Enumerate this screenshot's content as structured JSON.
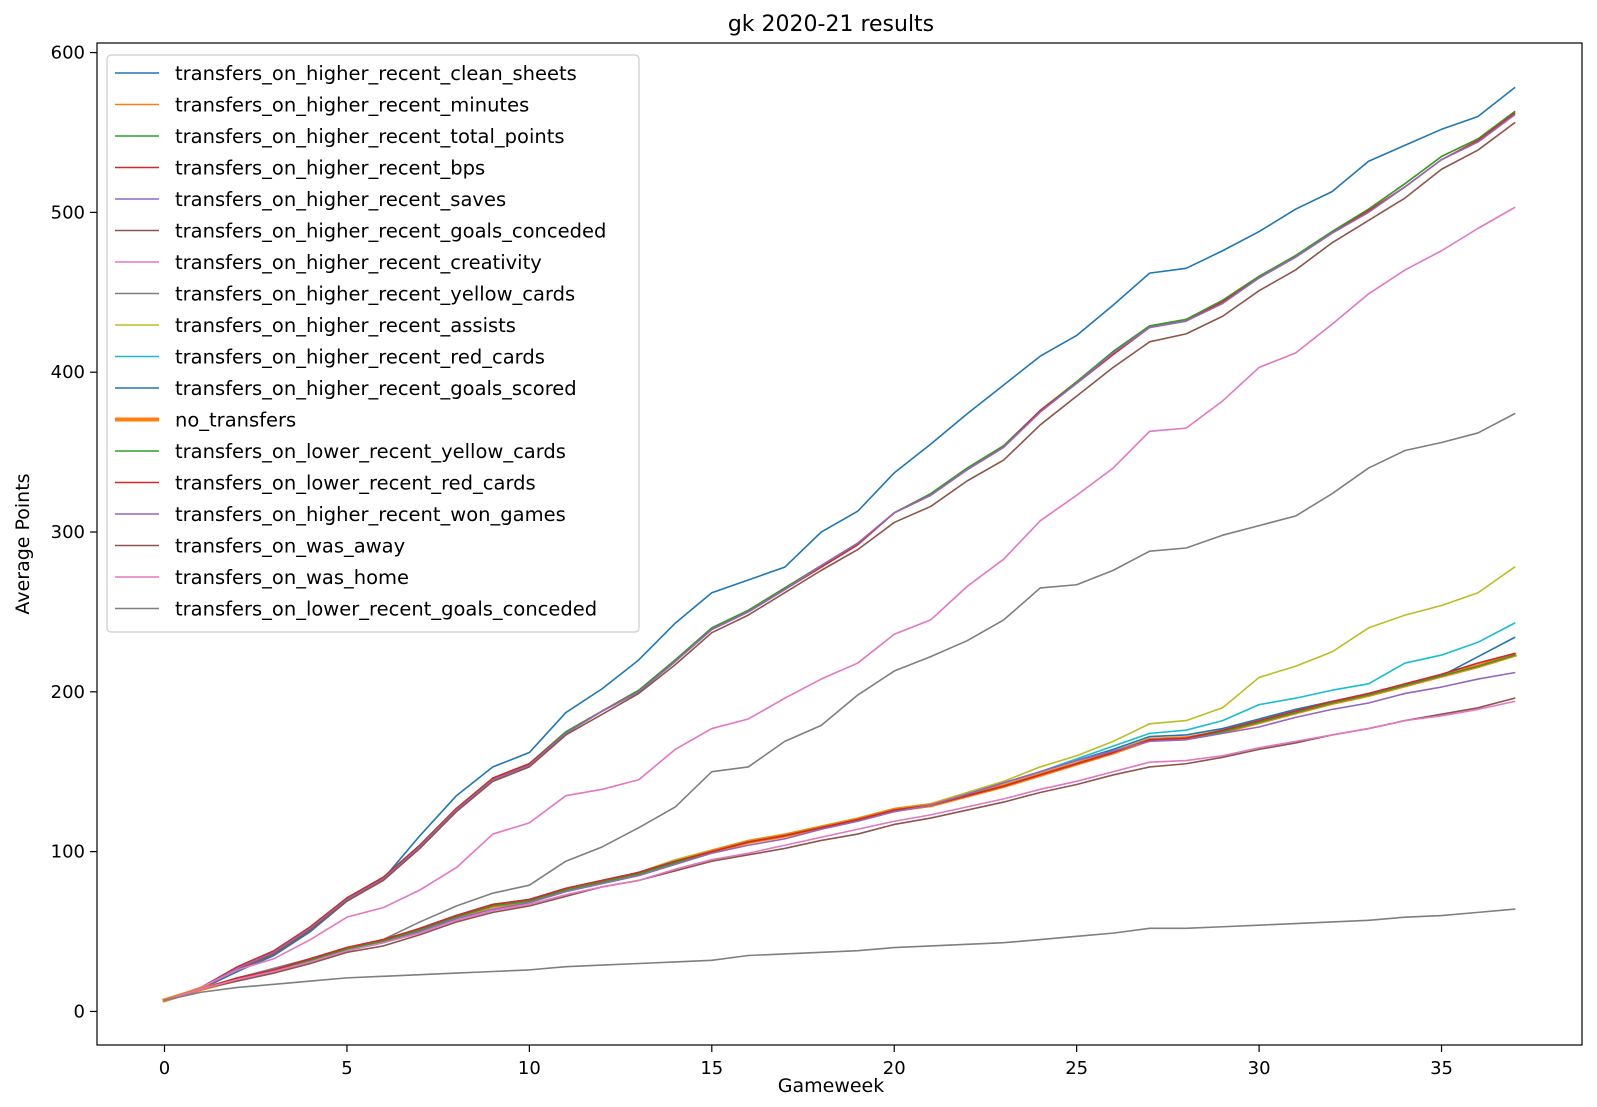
{
  "chart_data": {
    "type": "line",
    "title": "gk 2020-21 results",
    "xlabel": "Gameweek",
    "ylabel": "Average Points",
    "xlim": [
      -1.85,
      38.85
    ],
    "ylim": [
      -21,
      606
    ],
    "xticks": [
      0,
      5,
      10,
      15,
      20,
      25,
      30,
      35
    ],
    "yticks": [
      0,
      100,
      200,
      300,
      400,
      500,
      600
    ],
    "grid": false,
    "legend_position": "top-left",
    "x": [
      0,
      1,
      2,
      3,
      4,
      5,
      6,
      7,
      8,
      9,
      10,
      11,
      12,
      13,
      14,
      15,
      16,
      17,
      18,
      19,
      20,
      21,
      22,
      23,
      24,
      25,
      26,
      27,
      28,
      29,
      30,
      31,
      32,
      33,
      34,
      35,
      36,
      37
    ],
    "series": [
      {
        "name": "transfers_on_higher_recent_clean_sheets",
        "color": "#1f77b4",
        "width": 1.6,
        "values": [
          7,
          14,
          25,
          35,
          50,
          69,
          83,
          110,
          135,
          153,
          162,
          187,
          202,
          220,
          243,
          262,
          270,
          278,
          300,
          313,
          337,
          355,
          374,
          392,
          410,
          423,
          442,
          462,
          465,
          476,
          488,
          502,
          513,
          532,
          542,
          552,
          560,
          578
        ]
      },
      {
        "name": "transfers_on_higher_recent_minutes",
        "color": "#ff7f0e",
        "width": 1.6,
        "values": [
          7,
          15,
          27,
          37,
          53,
          71,
          84,
          104,
          127,
          146,
          155,
          175,
          188,
          201,
          220,
          240,
          251,
          265,
          279,
          293,
          312,
          324,
          340,
          354,
          376,
          394,
          413,
          429,
          433,
          445,
          460,
          473,
          488,
          502,
          518,
          535,
          546,
          563
        ]
      },
      {
        "name": "transfers_on_higher_recent_total_points",
        "color": "#2ca02c",
        "width": 1.6,
        "values": [
          7,
          15,
          27,
          37,
          53,
          71,
          84,
          104,
          127,
          146,
          155,
          175,
          188,
          201,
          220,
          240,
          251,
          265,
          279,
          293,
          312,
          324,
          340,
          354,
          376,
          394,
          413,
          429,
          433,
          445,
          460,
          473,
          488,
          502,
          518,
          535,
          546,
          563
        ]
      },
      {
        "name": "transfers_on_higher_recent_bps",
        "color": "#d62728",
        "width": 1.6,
        "values": [
          7,
          15,
          28,
          38,
          53,
          71,
          84,
          104,
          127,
          146,
          155,
          174,
          188,
          200,
          219,
          239,
          250,
          264,
          278,
          292,
          312,
          323,
          339,
          353,
          376,
          393,
          411,
          428,
          432,
          444,
          459,
          472,
          487,
          501,
          516,
          533,
          545,
          562
        ]
      },
      {
        "name": "transfers_on_higher_recent_saves",
        "color": "#9467bd",
        "width": 1.6,
        "values": [
          7,
          15,
          27,
          37,
          52,
          70,
          83,
          103,
          126,
          145,
          154,
          174,
          188,
          200,
          219,
          239,
          250,
          264,
          279,
          293,
          312,
          323,
          339,
          353,
          375,
          393,
          412,
          428,
          432,
          443,
          459,
          472,
          487,
          500,
          516,
          533,
          544,
          561
        ]
      },
      {
        "name": "transfers_on_higher_recent_goals_conceded",
        "color": "#8c564b",
        "width": 1.6,
        "values": [
          7,
          15,
          26,
          36,
          51,
          69,
          82,
          102,
          125,
          144,
          153,
          173,
          186,
          199,
          217,
          237,
          248,
          262,
          276,
          289,
          306,
          316,
          332,
          345,
          367,
          385,
          403,
          419,
          424,
          435,
          451,
          464,
          481,
          495,
          509,
          527,
          539,
          556
        ]
      },
      {
        "name": "transfers_on_higher_recent_creativity",
        "color": "#e377c2",
        "width": 1.6,
        "values": [
          7,
          15,
          26,
          33,
          45,
          59,
          65,
          76,
          90,
          111,
          118,
          135,
          139,
          145,
          164,
          177,
          183,
          196,
          208,
          218,
          236,
          245,
          266,
          283,
          307,
          323,
          340,
          363,
          365,
          382,
          403,
          412,
          430,
          449,
          464,
          476,
          490,
          503
        ]
      },
      {
        "name": "transfers_on_higher_recent_yellow_cards",
        "color": "#7f7f7f",
        "width": 1.6,
        "values": [
          7,
          14,
          21,
          27,
          33,
          40,
          45,
          56,
          66,
          74,
          79,
          94,
          103,
          115,
          128,
          150,
          153,
          169,
          179,
          198,
          213,
          222,
          232,
          245,
          265,
          267,
          276,
          288,
          290,
          298,
          304,
          310,
          324,
          340,
          351,
          356,
          362,
          374
        ]
      },
      {
        "name": "transfers_on_higher_recent_assists",
        "color": "#bcbd22",
        "width": 1.6,
        "values": [
          7,
          14,
          21,
          26,
          33,
          39,
          44,
          52,
          60,
          67,
          70,
          77,
          82,
          87,
          95,
          101,
          107,
          111,
          116,
          121,
          127,
          130,
          137,
          144,
          153,
          160,
          169,
          180,
          182,
          190,
          209,
          216,
          225,
          240,
          248,
          254,
          262,
          278
        ]
      },
      {
        "name": "transfers_on_higher_recent_red_cards",
        "color": "#17becf",
        "width": 1.6,
        "values": [
          7,
          14,
          21,
          26,
          33,
          39,
          44,
          52,
          60,
          67,
          70,
          77,
          82,
          87,
          94,
          100,
          106,
          110,
          115,
          120,
          126,
          129,
          136,
          143,
          150,
          158,
          166,
          174,
          176,
          182,
          192,
          196,
          201,
          205,
          218,
          223,
          231,
          243
        ]
      },
      {
        "name": "transfers_on_higher_recent_goals_scored",
        "color": "#1f77b4",
        "width": 1.6,
        "values": [
          7,
          14,
          21,
          26,
          33,
          39,
          44,
          52,
          60,
          67,
          70,
          77,
          82,
          87,
          94,
          100,
          106,
          110,
          115,
          120,
          126,
          129,
          136,
          143,
          150,
          157,
          164,
          172,
          173,
          177,
          183,
          189,
          194,
          198,
          204,
          210,
          222,
          234
        ]
      },
      {
        "name": "no_transfers",
        "color": "#ff7f0e",
        "width": 4,
        "values": [
          7,
          14,
          20,
          25,
          32,
          39,
          44,
          51,
          59,
          66,
          69,
          76,
          81,
          86,
          93,
          100,
          106,
          110,
          115,
          120,
          126,
          129,
          135,
          141,
          148,
          155,
          162,
          170,
          171,
          175,
          181,
          187,
          193,
          198,
          204,
          210,
          216,
          223
        ]
      },
      {
        "name": "transfers_on_lower_recent_yellow_cards",
        "color": "#2ca02c",
        "width": 1.6,
        "values": [
          7,
          14,
          20,
          25,
          32,
          39,
          44,
          51,
          59,
          66,
          69,
          76,
          81,
          86,
          93,
          100,
          106,
          110,
          115,
          120,
          126,
          129,
          135,
          141,
          148,
          155,
          162,
          170,
          171,
          175,
          181,
          187,
          193,
          198,
          204,
          210,
          216,
          223
        ]
      },
      {
        "name": "transfers_on_lower_recent_red_cards",
        "color": "#d62728",
        "width": 1.6,
        "values": [
          7,
          14,
          21,
          26,
          33,
          40,
          45,
          52,
          60,
          67,
          70,
          77,
          82,
          87,
          94,
          100,
          106,
          110,
          115,
          120,
          126,
          129,
          135,
          141,
          148,
          155,
          162,
          170,
          171,
          176,
          182,
          188,
          194,
          199,
          205,
          211,
          218,
          224
        ]
      },
      {
        "name": "transfers_on_higher_recent_won_games",
        "color": "#9467bd",
        "width": 1.6,
        "values": [
          7,
          14,
          20,
          25,
          31,
          38,
          43,
          50,
          58,
          64,
          68,
          75,
          80,
          85,
          92,
          99,
          104,
          108,
          114,
          119,
          125,
          129,
          136,
          143,
          150,
          157,
          163,
          169,
          170,
          174,
          178,
          184,
          189,
          193,
          199,
          203,
          208,
          212
        ]
      },
      {
        "name": "transfers_on_was_away",
        "color": "#8c564b",
        "width": 1.6,
        "values": [
          7,
          14,
          19,
          24,
          30,
          37,
          41,
          48,
          56,
          62,
          66,
          72,
          78,
          82,
          88,
          94,
          98,
          102,
          107,
          111,
          117,
          121,
          126,
          131,
          137,
          142,
          148,
          153,
          155,
          159,
          164,
          168,
          173,
          177,
          182,
          186,
          190,
          196
        ]
      },
      {
        "name": "transfers_on_was_home",
        "color": "#e377c2",
        "width": 1.6,
        "values": [
          7,
          14,
          20,
          25,
          31,
          38,
          43,
          49,
          57,
          63,
          67,
          73,
          78,
          82,
          89,
          95,
          99,
          104,
          109,
          114,
          119,
          123,
          128,
          133,
          139,
          144,
          150,
          156,
          157,
          160,
          165,
          169,
          173,
          177,
          182,
          185,
          189,
          194
        ]
      },
      {
        "name": "transfers_on_lower_recent_goals_conceded",
        "color": "#7f7f7f",
        "width": 1.6,
        "values": [
          7,
          12,
          15,
          17,
          19,
          21,
          22,
          23,
          24,
          25,
          26,
          28,
          29,
          30,
          31,
          32,
          35,
          36,
          37,
          38,
          40,
          41,
          42,
          43,
          45,
          47,
          49,
          52,
          52,
          53,
          54,
          55,
          56,
          57,
          59,
          60,
          62,
          64
        ]
      }
    ]
  }
}
